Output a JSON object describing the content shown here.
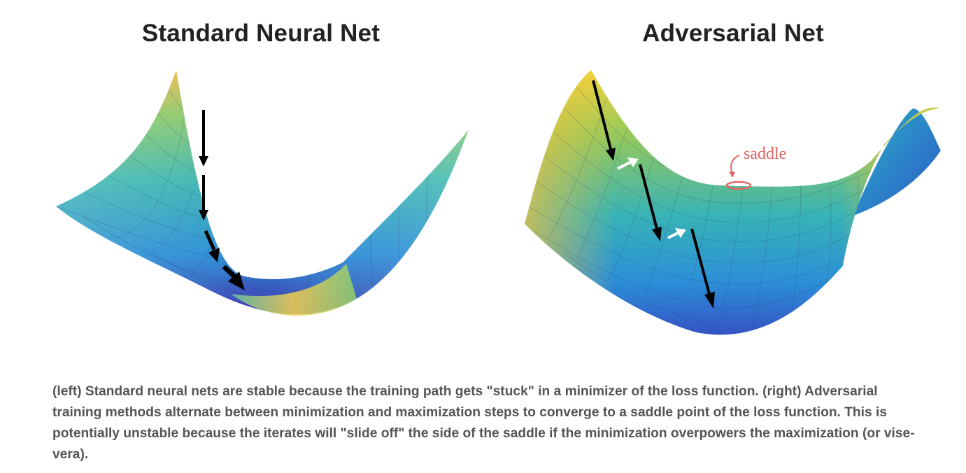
{
  "titles": {
    "left": "Standard Neural Net",
    "right": "Adversarial Net"
  },
  "annotations": {
    "saddle": "saddle"
  },
  "caption": "(left) Standard neural nets are stable because the training path gets \"stuck\" in a minimizer of the loss function. (right) Adversarial training methods alternate between minimization and maximization steps to converge to a saddle point of the loss function. This is potentially unstable because the iterates will \"slide off\" the side of the saddle if the minimization overpowers the maximization (or vise-vera).",
  "colors": {
    "surface_low": "#3b3ba8",
    "surface_mid": "#2aa6cf",
    "surface_high": "#f6c94a",
    "arrow": "#000000",
    "step_arrow": "#ffffff",
    "saddle_marker": "#e06464",
    "title": "#222222",
    "caption": "#555555"
  },
  "icons": {
    "descent_arrows": "black-down-arrow",
    "ascent_arrows": "white-side-arrow",
    "saddle_point": "red-ellipse"
  }
}
